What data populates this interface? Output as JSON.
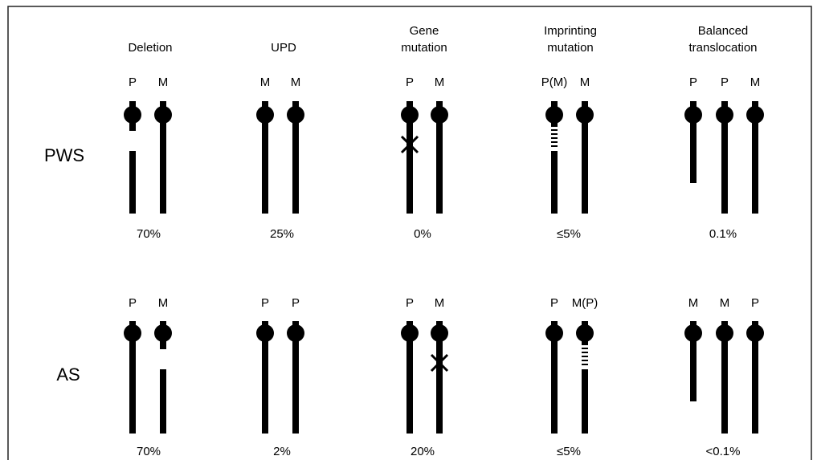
{
  "columns": [
    {
      "title_lines": [
        "Deletion"
      ]
    },
    {
      "title_lines": [
        "UPD"
      ]
    },
    {
      "title_lines": [
        "Gene",
        "mutation"
      ]
    },
    {
      "title_lines": [
        "Imprinting",
        "mutation"
      ]
    },
    {
      "title_lines": [
        "Balanced",
        "translocation"
      ]
    }
  ],
  "rows": [
    {
      "label": "PWS",
      "chromosomes": [
        [
          "P",
          "M"
        ],
        [
          "M",
          "M"
        ],
        [
          "P",
          "M"
        ],
        [
          "P(M)",
          "M"
        ],
        [
          "P",
          "P",
          "M"
        ]
      ],
      "percentages": [
        "70%",
        "25%",
        "0%",
        "≤5%",
        "0.1%"
      ]
    },
    {
      "label": "AS",
      "chromosomes": [
        [
          "P",
          "M"
        ],
        [
          "P",
          "P"
        ],
        [
          "P",
          "M"
        ],
        [
          "P",
          "M(P)"
        ],
        [
          "M",
          "M",
          "P"
        ]
      ],
      "percentages": [
        "70%",
        "2%",
        "20%",
        "≤5%",
        "<0.1%"
      ]
    }
  ]
}
